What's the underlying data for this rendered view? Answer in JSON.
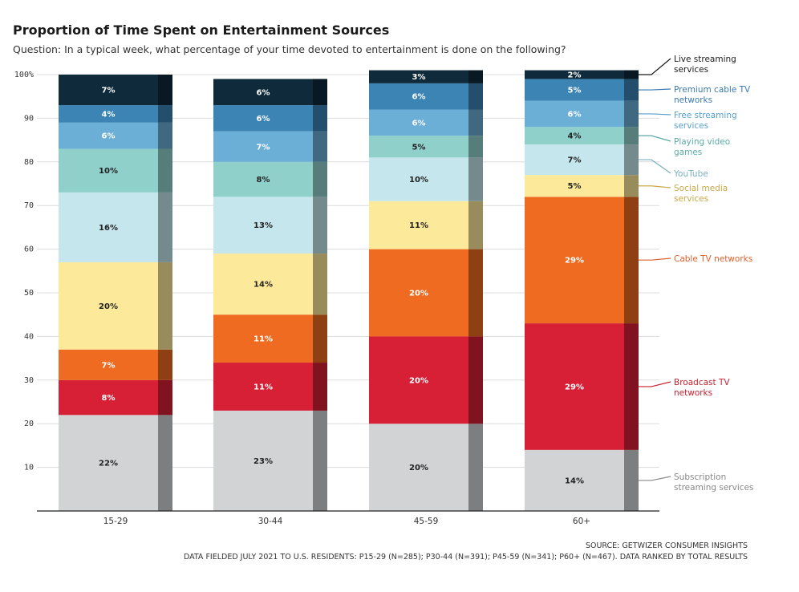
{
  "title": "Proportion of Time Spent on Entertainment Sources",
  "subtitle": "Question: In a typical week, what percentage of your time devoted to entertainment is done on the following?",
  "source_line1": "SOURCE: GETWIZER CONSUMER INSIGHTS",
  "source_line2": "DATA FIELDED JULY 2021 TO U.S. RESIDENTS: P15-29 (N=285); P30-44 (N=391); P45-59 (N=341); P60+ (N=467). DATA RANKED BY TOTAL RESULTS",
  "chart_data": {
    "type": "bar",
    "stacked": true,
    "categories": [
      "15-29",
      "30-44",
      "45-59",
      "60+"
    ],
    "ylim": [
      0,
      100
    ],
    "yticks": [
      {
        "value": 10,
        "label": "10"
      },
      {
        "value": 20,
        "label": "20"
      },
      {
        "value": 30,
        "label": "30"
      },
      {
        "value": 40,
        "label": "40"
      },
      {
        "value": 50,
        "label": "50"
      },
      {
        "value": 60,
        "label": "60"
      },
      {
        "value": 70,
        "label": "70"
      },
      {
        "value": 80,
        "label": "80"
      },
      {
        "value": 90,
        "label": "90"
      },
      {
        "value": 100,
        "label": "100%"
      }
    ],
    "grid": true,
    "legend_position": "right",
    "series": [
      {
        "name": "Subscription streaming services",
        "color": "#d1d3d4",
        "label_color": "#222222",
        "legend_color": "#888888",
        "values": [
          22,
          23,
          20,
          14
        ],
        "labels": [
          "22%",
          "23%",
          "20%",
          "14%"
        ]
      },
      {
        "name": "Broadcast TV networks",
        "color": "#d71f35",
        "label_color": "#ffffff",
        "legend_color": "#c8202f",
        "values": [
          8,
          11,
          20,
          29
        ],
        "labels": [
          "8%",
          "11%",
          "20%",
          "29%"
        ]
      },
      {
        "name": "Cable TV networks",
        "color": "#ef6b21",
        "label_color": "#ffffff",
        "legend_color": "#e0602a",
        "values": [
          7,
          11,
          20,
          29
        ],
        "labels": [
          "7%",
          "11%",
          "20%",
          "29%"
        ]
      },
      {
        "name": "Social media services",
        "color": "#fde99a",
        "label_color": "#222222",
        "legend_color": "#c9a94a",
        "values": [
          20,
          14,
          11,
          5
        ],
        "labels": [
          "20%",
          "14%",
          "11%",
          "5%"
        ]
      },
      {
        "name": "YouTube",
        "color": "#c4e6ec",
        "label_color": "#222222",
        "legend_color": "#7ab1bf",
        "values": [
          16,
          13,
          10,
          7
        ],
        "labels": [
          "16%",
          "13%",
          "10%",
          "7%"
        ]
      },
      {
        "name": "Playing video games",
        "color": "#8fd0cb",
        "label_color": "#222222",
        "legend_color": "#5aaaa6",
        "values": [
          10,
          8,
          5,
          4
        ],
        "labels": [
          "10%",
          "8%",
          "5%",
          "4%"
        ]
      },
      {
        "name": "Free streaming services",
        "color": "#6baed6",
        "label_color": "#ffffff",
        "legend_color": "#5a9fcc",
        "values": [
          6,
          7,
          6,
          6
        ],
        "labels": [
          "6%",
          "7%",
          "6%",
          "6%"
        ]
      },
      {
        "name": "Premium cable TV networks",
        "color": "#3b84b4",
        "label_color": "#ffffff",
        "legend_color": "#3b7ab0",
        "values": [
          4,
          6,
          6,
          5
        ],
        "labels": [
          "4%",
          "6%",
          "6%",
          "5%"
        ]
      },
      {
        "name": "Live streaming services",
        "color": "#0e2a3b",
        "label_color": "#ffffff",
        "legend_color": "#1a1a1a",
        "values": [
          7,
          6,
          3,
          2
        ],
        "labels": [
          "7%",
          "6%",
          "3%",
          "2%"
        ]
      }
    ],
    "legend_entries": [
      {
        "series": 8,
        "lines": [
          "Live streaming",
          "services"
        ]
      },
      {
        "series": 7,
        "lines": [
          "Premium cable TV",
          "networks"
        ]
      },
      {
        "series": 6,
        "lines": [
          "Free streaming",
          "services"
        ]
      },
      {
        "series": 5,
        "lines": [
          "Playing video",
          "games"
        ]
      },
      {
        "series": 4,
        "lines": [
          "YouTube"
        ]
      },
      {
        "series": 3,
        "lines": [
          "Social media",
          "services"
        ]
      },
      {
        "series": 2,
        "lines": [
          "Cable TV networks"
        ]
      },
      {
        "series": 1,
        "lines": [
          "Broadcast TV",
          "networks"
        ]
      },
      {
        "series": 0,
        "lines": [
          "Subscription",
          "streaming services"
        ]
      }
    ]
  }
}
